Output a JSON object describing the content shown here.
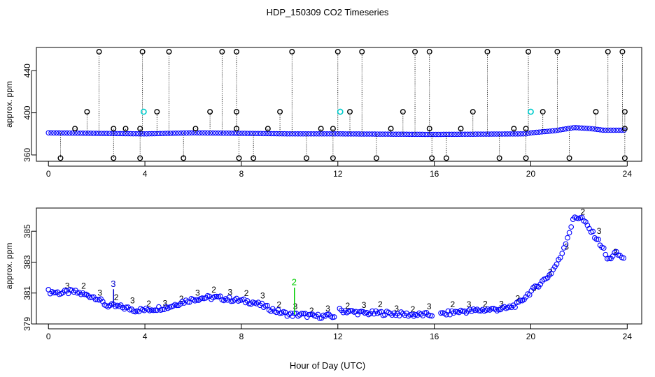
{
  "title": "HDP_150309  CO2 Timeseries",
  "xlabel": "Hour of Day (UTC)",
  "colors": {
    "raw": "#0000ff",
    "spike": "#000000",
    "flag": "#00cccc",
    "marker_2": "#00cc00",
    "marker_3": "#0000cc"
  },
  "chart_data": [
    {
      "type": "scatter",
      "panel": "top",
      "ylabel": "approx. ppm",
      "xlim": [
        -0.5,
        24.6
      ],
      "ylim": [
        354,
        462
      ],
      "xticks": [
        0,
        4,
        8,
        12,
        16,
        20,
        24
      ],
      "yticks": [
        360,
        400,
        440
      ],
      "baseline": [
        [
          0,
          381
        ],
        [
          2,
          380.5
        ],
        [
          4,
          380
        ],
        [
          6,
          381
        ],
        [
          8,
          380.5
        ],
        [
          10,
          380
        ],
        [
          12,
          380
        ],
        [
          16,
          379.5
        ],
        [
          19.8,
          380
        ],
        [
          20,
          381
        ],
        [
          21,
          383
        ],
        [
          21.8,
          386
        ],
        [
          22.5,
          385
        ],
        [
          23,
          383.5
        ],
        [
          23.8,
          383.5
        ]
      ],
      "spikes_high": [
        2.1,
        3.9,
        5.0,
        7.2,
        7.8,
        10.1,
        12.0,
        13.0,
        15.2,
        15.8,
        18.2,
        19.9,
        21.1,
        23.2,
        23.8
      ],
      "spikes_mid": [
        1.6,
        4.5,
        6.7,
        7.8,
        9.6,
        12.5,
        14.7,
        17.6,
        20.5,
        22.7,
        23.9
      ],
      "spikes_low": [
        0.5,
        2.7,
        3.8,
        5.6,
        7.9,
        8.5,
        10.7,
        11.8,
        13.6,
        15.9,
        16.5,
        18.7,
        19.8,
        21.6,
        23.9
      ],
      "spikes_small": [
        1.1,
        2.7,
        3.2,
        3.8,
        6.1,
        7.8,
        9.1,
        11.3,
        11.8,
        14.2,
        15.8,
        17.1,
        19.3,
        19.8,
        23.9
      ],
      "flagged": [
        {
          "x": 3.95,
          "y": 401
        },
        {
          "x": 12.1,
          "y": 401
        },
        {
          "x": 20.0,
          "y": 401
        }
      ]
    },
    {
      "type": "scatter",
      "panel": "bottom",
      "ylabel": "approx. ppm",
      "xlim": [
        -0.5,
        24.6
      ],
      "ylim": [
        379,
        386.5
      ],
      "xticks": [
        0,
        4,
        8,
        12,
        16,
        20,
        24
      ],
      "yticks": [
        379,
        381,
        383,
        385
      ],
      "series": [
        [
          0,
          381.1
        ],
        [
          0.5,
          381.0
        ],
        [
          1.0,
          381.1
        ],
        [
          1.5,
          380.9
        ],
        [
          2.0,
          380.7
        ],
        [
          2.4,
          380.2
        ],
        [
          3.0,
          380.1
        ],
        [
          3.6,
          379.9
        ],
        [
          4.0,
          379.9
        ],
        [
          4.5,
          380.0
        ],
        [
          5.0,
          380.1
        ],
        [
          5.5,
          380.4
        ],
        [
          6.0,
          380.6
        ],
        [
          6.5,
          380.7
        ],
        [
          7.0,
          380.7
        ],
        [
          7.5,
          380.6
        ],
        [
          8.0,
          380.5
        ],
        [
          8.5,
          380.4
        ],
        [
          9.0,
          380.1
        ],
        [
          9.5,
          379.8
        ],
        [
          10.0,
          379.6
        ],
        [
          10.5,
          379.6
        ],
        [
          11.0,
          379.5
        ],
        [
          11.5,
          379.5
        ],
        [
          11.9,
          379.5
        ],
        [
          12.0,
          379.9
        ],
        [
          12.5,
          379.8
        ],
        [
          13.0,
          379.7
        ],
        [
          14.0,
          379.7
        ],
        [
          15.0,
          379.6
        ],
        [
          15.9,
          379.6
        ],
        [
          16.2,
          379.6
        ],
        [
          17.0,
          379.8
        ],
        [
          18.0,
          379.9
        ],
        [
          19.0,
          380.0
        ],
        [
          19.5,
          380.3
        ],
        [
          19.8,
          380.8
        ],
        [
          20.3,
          381.5
        ],
        [
          20.8,
          382.2
        ],
        [
          21.2,
          383.2
        ],
        [
          21.5,
          384.5
        ],
        [
          21.8,
          385.9
        ],
        [
          22.1,
          385.9
        ],
        [
          22.4,
          385.2
        ],
        [
          22.7,
          384.6
        ],
        [
          23.0,
          383.9
        ],
        [
          23.2,
          383.1
        ],
        [
          23.5,
          383.6
        ],
        [
          23.8,
          383.3
        ]
      ],
      "gaps": [
        [
          11.9,
          12.0
        ],
        [
          15.9,
          16.2
        ]
      ],
      "annotations": [
        {
          "x": 2.7,
          "y": 381.4,
          "label": "3"
        },
        {
          "x": 10.2,
          "y": 381.5,
          "label": "2"
        }
      ]
    }
  ]
}
